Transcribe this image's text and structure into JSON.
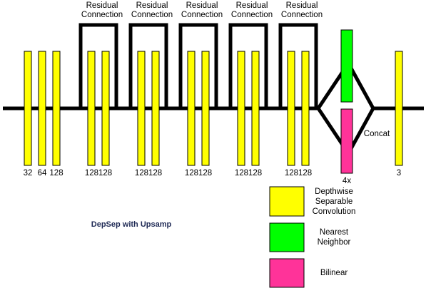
{
  "title": "DepSep with Upsamp",
  "residual_connections": [
    [
      "Residual",
      "Connection"
    ],
    [
      "Residual",
      "Connection"
    ],
    [
      "Residual",
      "Connection"
    ],
    [
      "Residual",
      "Connection"
    ],
    [
      "Residual",
      "Connection"
    ]
  ],
  "channel_labels": [
    "32",
    "64",
    "128",
    "128128",
    "128128",
    "128128",
    "128128",
    "128128",
    "3"
  ],
  "upsample_label": "4x",
  "concat_label": "Concat",
  "legend": [
    {
      "label": [
        "Depthwise",
        "Separable",
        "Convolution"
      ]
    },
    {
      "label": [
        "Nearest",
        "Neighbor"
      ]
    },
    {
      "label": [
        "Bilinear"
      ]
    }
  ]
}
